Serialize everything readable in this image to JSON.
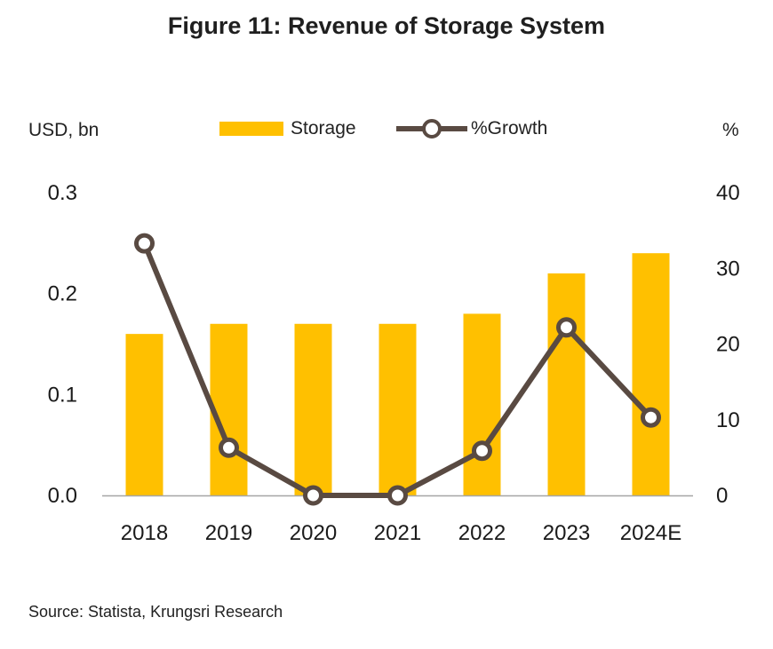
{
  "title": "Figure 11: Revenue of Storage System",
  "left_unit": "USD, bn",
  "right_unit": "%",
  "legend": {
    "bar_label": "Storage",
    "line_label": "%Growth"
  },
  "source": "Source: Statista, Krungsri Research",
  "colors": {
    "bar": "#ffc000",
    "line": "#594a42",
    "marker_fill": "#ffffff",
    "axis": "#a6a6a6"
  },
  "chart_data": {
    "type": "bar",
    "categories": [
      "2018",
      "2019",
      "2020",
      "2021",
      "2022",
      "2023",
      "2024E"
    ],
    "series": [
      {
        "name": "Storage",
        "type": "bar",
        "axis": "left",
        "values": [
          0.16,
          0.17,
          0.17,
          0.17,
          0.18,
          0.22,
          0.24
        ]
      },
      {
        "name": "%Growth",
        "type": "line",
        "axis": "right",
        "values": [
          33.3,
          6.3,
          0.0,
          0.0,
          5.9,
          22.2,
          10.3
        ]
      }
    ],
    "y_left": {
      "label": "USD, bn",
      "ylim": [
        0,
        0.3
      ],
      "ticks": [
        "0.0",
        "0.1",
        "0.2",
        "0.3"
      ]
    },
    "y_right": {
      "label": "%",
      "ylim": [
        0,
        40
      ],
      "ticks": [
        "0",
        "10",
        "20",
        "30",
        "40"
      ]
    },
    "legend_position": "top",
    "grid": false
  }
}
